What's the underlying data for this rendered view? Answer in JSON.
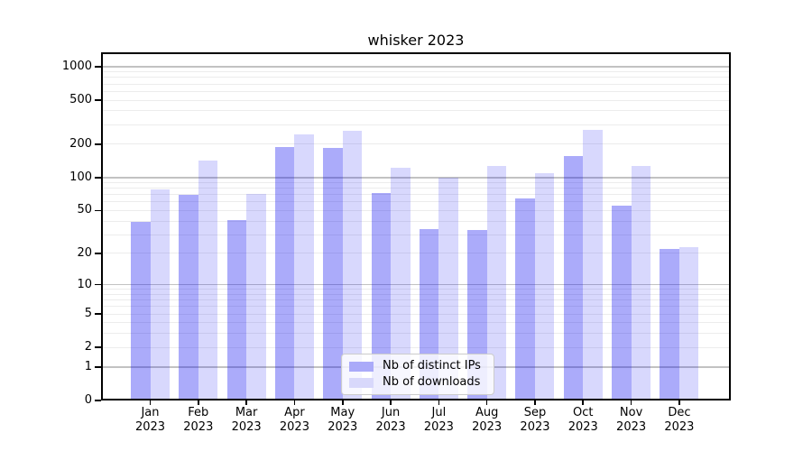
{
  "title": "whisker 2023",
  "chart_data": {
    "type": "bar",
    "scale": "log1p",
    "title": "whisker 2023",
    "xlabel": "",
    "ylabel": "",
    "year": "2023",
    "categories": [
      "Jan",
      "Feb",
      "Mar",
      "Apr",
      "May",
      "Jun",
      "Jul",
      "Aug",
      "Sep",
      "Oct",
      "Nov",
      "Dec"
    ],
    "series": [
      {
        "name": "Nb of distinct IPs",
        "color": "#aaaaf9",
        "fill": "rgba(13,13,242,0.35)",
        "values": [
          39,
          70,
          41,
          189,
          184,
          72,
          34,
          33,
          64,
          157,
          55,
          22
        ]
      },
      {
        "name": "Nb of downloads",
        "color": "#d8d8fb",
        "fill": "rgba(13,13,242,0.16)",
        "values": [
          78,
          142,
          71,
          244,
          265,
          122,
          100,
          127,
          110,
          270,
          127,
          23
        ]
      }
    ],
    "yticks": [
      0,
      1,
      2,
      5,
      10,
      20,
      50,
      100,
      200,
      500,
      1000
    ],
    "ylim": [
      0,
      1000
    ],
    "grid": true,
    "legend_position": "lower center"
  },
  "colors": {
    "background": "#ffffff",
    "spine": "#000000",
    "grid_major": "#c2c2c2",
    "grid_minor": "#ececec",
    "legend_border": "#cccccc",
    "legend_background": "rgba(255,255,255,0.8)"
  }
}
